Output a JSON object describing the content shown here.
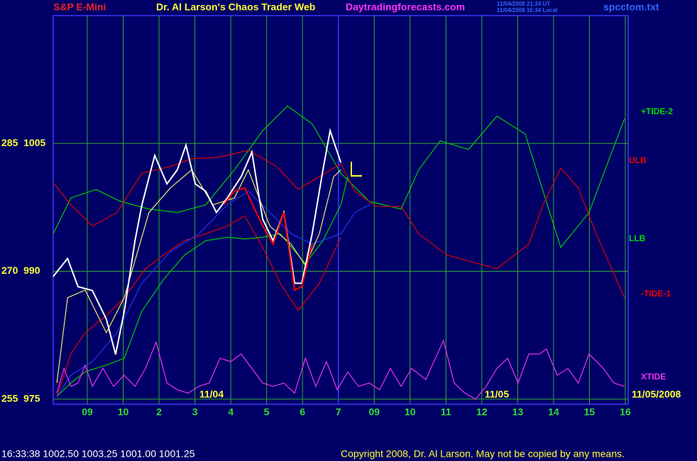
{
  "header": {
    "left": "S&P E-Mini",
    "title": "Dr. Al Larson's Chaos Trader Web",
    "site": "Daytradingforecasts.com",
    "stamp_ut": "11/04/2008 21:34 UT",
    "stamp_local": "11/04/2008 16:34 Local",
    "file": "spcctom.txt"
  },
  "footer": {
    "quote": "16:33:38  1002.50  1003.25  1001.00  1001.25",
    "copyright": "Copyright 2008, Dr. Al Larson. May not be copied by any means."
  },
  "chart_data": {
    "type": "line",
    "xlim": [
      -0.95,
      15.08
    ],
    "ylim": [
      974.4,
      1020
    ],
    "xticks": [
      {
        "value": 0,
        "label": "09"
      },
      {
        "value": 1,
        "label": "10"
      },
      2,
      3,
      4,
      5,
      6,
      7,
      {
        "value": 8,
        "label": "09"
      },
      {
        "value": 9,
        "label": "10"
      },
      {
        "value": 10,
        "label": "11"
      },
      {
        "value": 11,
        "label": "12"
      },
      {
        "value": 12,
        "label": "13"
      },
      {
        "value": 13,
        "label": "14"
      },
      {
        "value": 14,
        "label": "15"
      },
      {
        "value": 15,
        "label": "16"
      }
    ],
    "xtick_labels_override": null,
    "yticks": [
      {
        "value": 975,
        "label": "255  975"
      },
      {
        "value": 990,
        "label": "270  990"
      },
      {
        "value": 1005,
        "label": "285  1005"
      }
    ],
    "grid": true,
    "now_line": {
      "x": 7,
      "color": "#3838ff"
    },
    "date_labels": [
      "11/04",
      "11/05",
      "11/05/2008"
    ],
    "right_labels": [
      {
        "text": "+TIDE-2",
        "color": "#00dd00"
      },
      {
        "text": "ULB",
        "color": "#ee0000"
      },
      {
        "text": "LLB",
        "color": "#00dd00"
      },
      {
        "text": "-TIDE-1",
        "color": "#ee0000"
      },
      {
        "text": "XTIDE",
        "color": "#ee33ee"
      }
    ],
    "series": [
      {
        "color": "#00cc00",
        "x": [
          -0.95,
          -0.46,
          0.24,
          0.93,
          1.72,
          2.51,
          3.3,
          4.1,
          4.89,
          5.58,
          6.27,
          7.07,
          7.86,
          8.75,
          9.24,
          9.84,
          10.63,
          11.42,
          12.21,
          12.71,
          13.2,
          13.99,
          14.59,
          14.98
        ],
        "values": [
          994.4,
          998.6,
          999.6,
          998.2,
          997.3,
          996.9,
          997.8,
          1001.9,
          1006.5,
          1009.4,
          1007.3,
          1001.5,
          998.2,
          997.3,
          1001.9,
          1005.3,
          1004.3,
          1008.2,
          1006.1,
          999.4,
          992.8,
          996.9,
          1003.6,
          1007.9
        ]
      },
      {
        "color": "#dd0000",
        "x": [
          -0.95,
          -0.46,
          0.14,
          0.83,
          1.52,
          2.32,
          2.91,
          3.7,
          4.49,
          5.28,
          5.88,
          6.47,
          7.07,
          7.46,
          8.05,
          8.75,
          9.24,
          10.03,
          11.42,
          12.31,
          12.71,
          13.2,
          13.69,
          14.19,
          14.98
        ],
        "values": [
          1000.4,
          997.8,
          995.3,
          996.9,
          1001.5,
          1002.3,
          1003.2,
          1003.4,
          1004.2,
          1002.3,
          999.6,
          1001.1,
          1002.6,
          999.4,
          997.6,
          997.6,
          994.4,
          991.9,
          990.3,
          993.2,
          997.8,
          1002.1,
          999.8,
          994.4,
          986.9
        ]
      },
      {
        "color": "#dd0000",
        "x": [
          -0.85,
          -0.46,
          -0.06,
          0.53,
          1.03,
          1.62,
          2.12,
          2.71,
          3.3,
          3.9,
          4.39,
          4.89,
          5.38,
          5.88,
          6.47,
          7.07
        ],
        "values": [
          975.3,
          980.3,
          982.8,
          984.8,
          986.9,
          990.3,
          991.9,
          993.6,
          994.4,
          995.3,
          996.5,
          992.8,
          988.6,
          985.4,
          988.6,
          994.0
        ]
      },
      {
        "color": "#00cc00",
        "x": [
          -0.85,
          -0.46,
          -0.06,
          0.53,
          1.03,
          1.52,
          2.12,
          2.71,
          3.3,
          3.9,
          4.39,
          4.89,
          5.38,
          6.08,
          6.57,
          7.07,
          7.26
        ],
        "values": [
          975.3,
          976.9,
          978.2,
          979.0,
          979.8,
          985.3,
          989.0,
          991.9,
          993.6,
          994.0,
          993.8,
          994.0,
          994.4,
          990.9,
          993.6,
          997.8,
          1001.1
        ]
      },
      {
        "color": "#2233ee",
        "x": [
          -0.85,
          -0.46,
          0.14,
          0.83,
          1.52,
          2.32,
          3.11,
          3.9,
          4.49,
          5.09,
          5.68,
          6.27,
          7.07,
          7.46,
          7.86
        ],
        "values": [
          975.3,
          977.8,
          979.4,
          982.8,
          988.6,
          992.3,
          994.4,
          997.8,
          999.4,
          996.9,
          994.4,
          993.2,
          994.4,
          996.9,
          997.8
        ]
      },
      {
        "color": "#eeee66",
        "x": [
          -0.85,
          -0.55,
          -0.06,
          0.53,
          1.03,
          1.72,
          2.32,
          2.91,
          3.5,
          4.1,
          4.49,
          5.09,
          5.68,
          6.08,
          6.47,
          6.87,
          7.07
        ],
        "values": [
          976.9,
          986.9,
          987.8,
          982.8,
          986.9,
          996.9,
          999.8,
          1001.9,
          997.8,
          998.6,
          1001.9,
          995.3,
          993.2,
          990.7,
          994.4,
          1001.1,
          1001.9
        ]
      },
      {
        "color": "#ffffff",
        "x": [
          -0.95,
          -0.55,
          -0.26,
          0.14,
          0.53,
          0.79,
          1.03,
          1.33,
          1.52,
          1.88,
          2.22,
          2.51,
          2.75,
          3.01,
          3.3,
          3.6,
          3.9,
          4.29,
          4.59,
          4.89,
          5.18,
          5.48,
          5.78,
          5.98,
          6.27,
          6.57,
          6.77,
          7.07
        ],
        "values": [
          989.4,
          991.5,
          988.2,
          987.75,
          984.4,
          980.25,
          985.25,
          993.6,
          997.75,
          1003.6,
          1000.25,
          1001.9,
          1004.8,
          1000.25,
          999.4,
          996.9,
          998.6,
          1001.1,
          1004,
          996.1,
          993.6,
          996.9,
          988.6,
          988.6,
          994.4,
          1001.9,
          1006.5,
          1002.75
        ]
      },
      {
        "color": "#ff0000",
        "x": [
          3.8,
          4.1,
          4.39,
          4.89,
          5.18,
          5.48,
          5.78,
          5.98,
          6.27
        ],
        "values": [
          997.8,
          999.4,
          999.8,
          995.3,
          993.2,
          996.9,
          987.8,
          988.2,
          993.2
        ]
      },
      {
        "color": "#ee33ee",
        "x": [
          -0.85,
          -0.65,
          -0.46,
          -0.26,
          -0.06,
          0.14,
          0.44,
          0.73,
          1.03,
          1.33,
          1.62,
          1.92,
          2.22,
          2.51,
          2.81,
          3.11,
          3.4,
          3.7,
          4.0,
          4.29,
          4.59,
          4.89,
          5.18,
          5.48,
          5.78,
          6.08,
          6.37,
          6.67,
          6.97,
          7.26,
          7.56,
          7.86,
          8.15,
          8.45,
          8.75,
          9.04,
          9.44,
          9.93,
          10.23,
          10.53,
          10.83,
          11.12,
          11.42,
          11.72,
          12.01,
          12.31,
          12.61,
          12.8,
          13.1,
          13.4,
          13.69,
          13.99,
          14.39,
          14.68,
          14.98
        ],
        "values": [
          975.7,
          978.6,
          976.5,
          976.9,
          979.0,
          976.5,
          978.6,
          976.5,
          977.8,
          976.5,
          978.6,
          981.7,
          976.9,
          976.1,
          975.7,
          976.5,
          976.9,
          979.8,
          979.4,
          980.3,
          978.6,
          976.9,
          976.5,
          976.9,
          975.7,
          979.8,
          976.5,
          979.4,
          976.1,
          978.2,
          976.5,
          976.9,
          976.1,
          978.6,
          976.5,
          978.6,
          977.3,
          981.9,
          976.9,
          975.7,
          975.0,
          976.5,
          978.6,
          979.8,
          976.9,
          980.3,
          980.3,
          980.9,
          977.8,
          978.6,
          976.9,
          980.3,
          978.6,
          976.9,
          976.5
        ]
      }
    ]
  }
}
